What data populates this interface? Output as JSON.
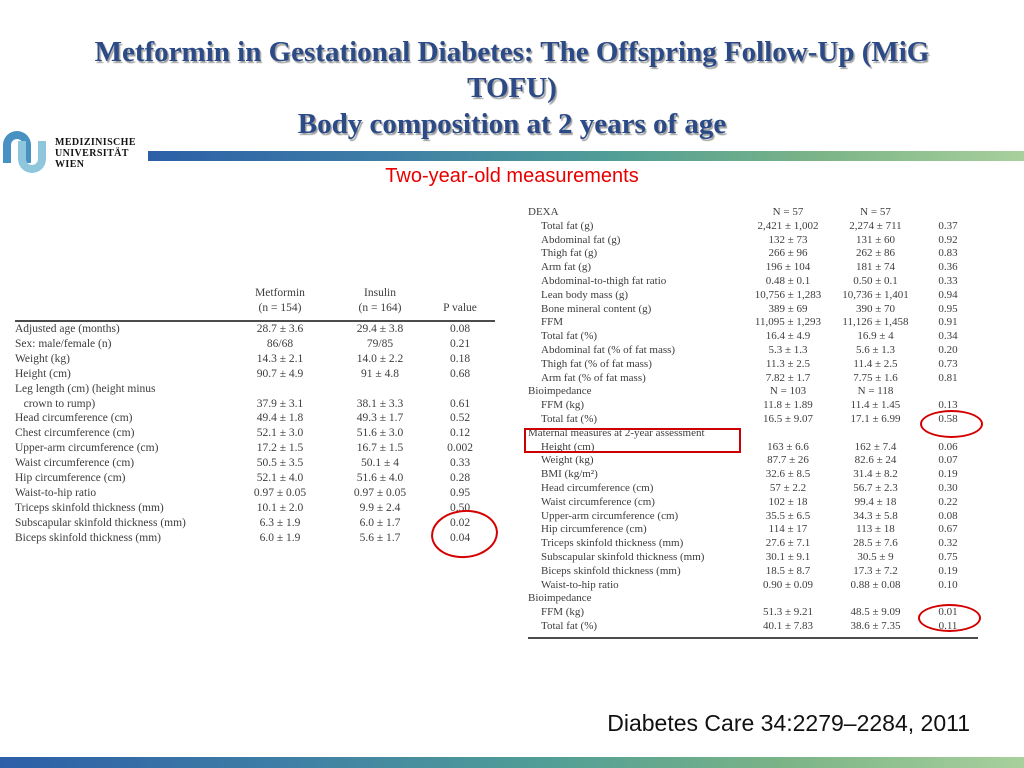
{
  "slide": {
    "title_lines": [
      "Metformin in Gestational Diabetes: The Offspring Follow-Up (MiG",
      "TOFU)",
      "Body composition at 2 years of age"
    ],
    "subtitle": "Two-year-old measurements",
    "citation": "Diabetes Care 34:2279–2284, 2011",
    "colors": {
      "title_blue": "#2b4a86",
      "subtitle_red": "#e80000",
      "annotation_red": "#d40000",
      "bar_gradient_start": "#2c5fa7",
      "bar_gradient_end": "#a8d09c"
    }
  },
  "logo": {
    "lines": [
      "MEDIZINISCHE",
      "UNIVERSITÄT",
      "WIEN"
    ]
  },
  "left_table": {
    "header": {
      "metformin": "Metformin\n(n = 154)",
      "insulin": "Insulin\n(n = 164)",
      "p": "P value"
    },
    "rows": [
      {
        "label": "Adjusted age (months)",
        "m": "28.7 ± 3.6",
        "i": "29.4 ± 3.8",
        "p": "0.08"
      },
      {
        "label": "Sex: male/female (n)",
        "m": "86/68",
        "i": "79/85",
        "p": "0.21"
      },
      {
        "label": "Weight (kg)",
        "m": "14.3 ± 2.1",
        "i": "14.0 ± 2.2",
        "p": "0.18"
      },
      {
        "label": "Height (cm)",
        "m": "90.7 ± 4.9",
        "i": "91 ± 4.8",
        "p": "0.68"
      },
      {
        "label": "Leg length (cm) (height minus\n   crown to rump)",
        "m": "37.9 ± 3.1",
        "i": "38.1 ± 3.3",
        "p": "0.61"
      },
      {
        "label": "Head circumference (cm)",
        "m": "49.4 ± 1.8",
        "i": "49.3 ± 1.7",
        "p": "0.52"
      },
      {
        "label": "Chest circumference (cm)",
        "m": "52.1 ± 3.0",
        "i": "51.6 ± 3.0",
        "p": "0.12"
      },
      {
        "label": "Upper-arm circumference (cm)",
        "m": "17.2 ± 1.5",
        "i": "16.7 ± 1.5",
        "p": "0.002"
      },
      {
        "label": "Waist circumference (cm)",
        "m": "50.5 ± 3.5",
        "i": "50.1 ± 4",
        "p": "0.33"
      },
      {
        "label": "Hip circumference (cm)",
        "m": "52.1 ± 4.0",
        "i": "51.6 ± 4.0",
        "p": "0.28"
      },
      {
        "label": "Waist-to-hip ratio",
        "m": "0.97 ± 0.05",
        "i": "0.97 ± 0.05",
        "p": "0.95"
      },
      {
        "label": "Triceps skinfold thickness (mm)",
        "m": "10.1 ± 2.0",
        "i": "9.9 ± 2.4",
        "p": "0.50"
      },
      {
        "label": "Subscapular skinfold thickness (mm)",
        "m": "6.3 ± 1.9",
        "i": "6.0 ± 1.7",
        "p": "0.02"
      },
      {
        "label": "Biceps skinfold thickness (mm)",
        "m": "6.0 ± 1.9",
        "i": "5.6 ± 1.7",
        "p": "0.04"
      }
    ]
  },
  "right_table": {
    "rows": [
      {
        "label": "DEXA",
        "m": "N = 57",
        "i": "N = 57",
        "p": "",
        "section": true
      },
      {
        "label": "Total fat (g)",
        "m": "2,421 ± 1,002",
        "i": "2,274 ± 711",
        "p": "0.37"
      },
      {
        "label": "Abdominal fat (g)",
        "m": "132 ± 73",
        "i": "131 ± 60",
        "p": "0.92"
      },
      {
        "label": "Thigh fat (g)",
        "m": "266 ± 96",
        "i": "262 ± 86",
        "p": "0.83"
      },
      {
        "label": "Arm fat (g)",
        "m": "196 ± 104",
        "i": "181 ± 74",
        "p": "0.36"
      },
      {
        "label": "Abdominal-to-thigh fat ratio",
        "m": "0.48 ± 0.1",
        "i": "0.50 ± 0.1",
        "p": "0.33"
      },
      {
        "label": "Lean body mass (g)",
        "m": "10,756 ± 1,283",
        "i": "10,736 ± 1,401",
        "p": "0.94"
      },
      {
        "label": "Bone mineral content (g)",
        "m": "389 ± 69",
        "i": "390 ± 70",
        "p": "0.95"
      },
      {
        "label": "FFM",
        "m": "11,095 ± 1,293",
        "i": "11,126 ± 1,458",
        "p": "0.91"
      },
      {
        "label": "Total fat (%)",
        "m": "16.4 ± 4.9",
        "i": "16.9 ± 4",
        "p": "0.34"
      },
      {
        "label": "Abdominal fat (% of fat mass)",
        "m": "5.3 ± 1.3",
        "i": "5.6 ± 1.3",
        "p": "0.20"
      },
      {
        "label": "Thigh fat (% of fat mass)",
        "m": "11.3 ± 2.5",
        "i": "11.4 ± 2.5",
        "p": "0.73"
      },
      {
        "label": "Arm fat (% of fat mass)",
        "m": "7.82 ± 1.7",
        "i": "7.75 ± 1.6",
        "p": "0.81"
      },
      {
        "label": "Bioimpedance",
        "m": "N = 103",
        "i": "N = 118",
        "p": "",
        "section": true
      },
      {
        "label": "FFM (kg)",
        "m": "11.8 ± 1.89",
        "i": "11.4 ± 1.45",
        "p": "0.13"
      },
      {
        "label": "Total fat (%)",
        "m": "16.5 ± 9.07",
        "i": "17.1 ± 6.99",
        "p": "0.58"
      },
      {
        "label": "Maternal measures at 2-year assessment",
        "m": "",
        "i": "",
        "p": "",
        "section": true
      },
      {
        "label": "Height (cm)",
        "m": "163 ± 6.6",
        "i": "162 ± 7.4",
        "p": "0.06"
      },
      {
        "label": "Weight (kg)",
        "m": "87.7 ± 26",
        "i": "82.6 ± 24",
        "p": "0.07"
      },
      {
        "label": "BMI (kg/m²)",
        "m": "32.6 ± 8.5",
        "i": "31.4 ± 8.2",
        "p": "0.19"
      },
      {
        "label": "Head circumference (cm)",
        "m": "57 ± 2.2",
        "i": "56.7 ± 2.3",
        "p": "0.30"
      },
      {
        "label": "Waist circumference (cm)",
        "m": "102 ± 18",
        "i": "99.4 ± 18",
        "p": "0.22"
      },
      {
        "label": "Upper-arm circumference (cm)",
        "m": "35.5 ± 6.5",
        "i": "34.3 ± 5.8",
        "p": "0.08"
      },
      {
        "label": "Hip circumference (cm)",
        "m": "114 ± 17",
        "i": "113 ± 18",
        "p": "0.67"
      },
      {
        "label": "Triceps skinfold thickness (mm)",
        "m": "27.6 ± 7.1",
        "i": "28.5 ± 7.6",
        "p": "0.32"
      },
      {
        "label": "Subscapular skinfold thickness (mm)",
        "m": "30.1 ± 9.1",
        "i": "30.5 ± 9",
        "p": "0.75"
      },
      {
        "label": "Biceps skinfold thickness (mm)",
        "m": "18.5 ± 8.7",
        "i": "17.3 ± 7.2",
        "p": "0.19"
      },
      {
        "label": "Waist-to-hip ratio",
        "m": "0.90 ± 0.09",
        "i": "0.88 ± 0.08",
        "p": "0.10"
      },
      {
        "label": "Bioimpedance",
        "m": "",
        "i": "",
        "p": "",
        "section": true
      },
      {
        "label": "FFM (kg)",
        "m": "51.3 ± 9.21",
        "i": "48.5 ± 9.09",
        "p": "0.01"
      },
      {
        "label": "Total fat (%)",
        "m": "40.1 ± 7.83",
        "i": "38.6 ± 7.35",
        "p": "0.11"
      }
    ]
  },
  "annotations": {
    "circled_p_values": [
      "0.02",
      "0.04",
      "0.58",
      "0.01"
    ],
    "boxed_section": "Maternal measures at 2-year assessment"
  }
}
